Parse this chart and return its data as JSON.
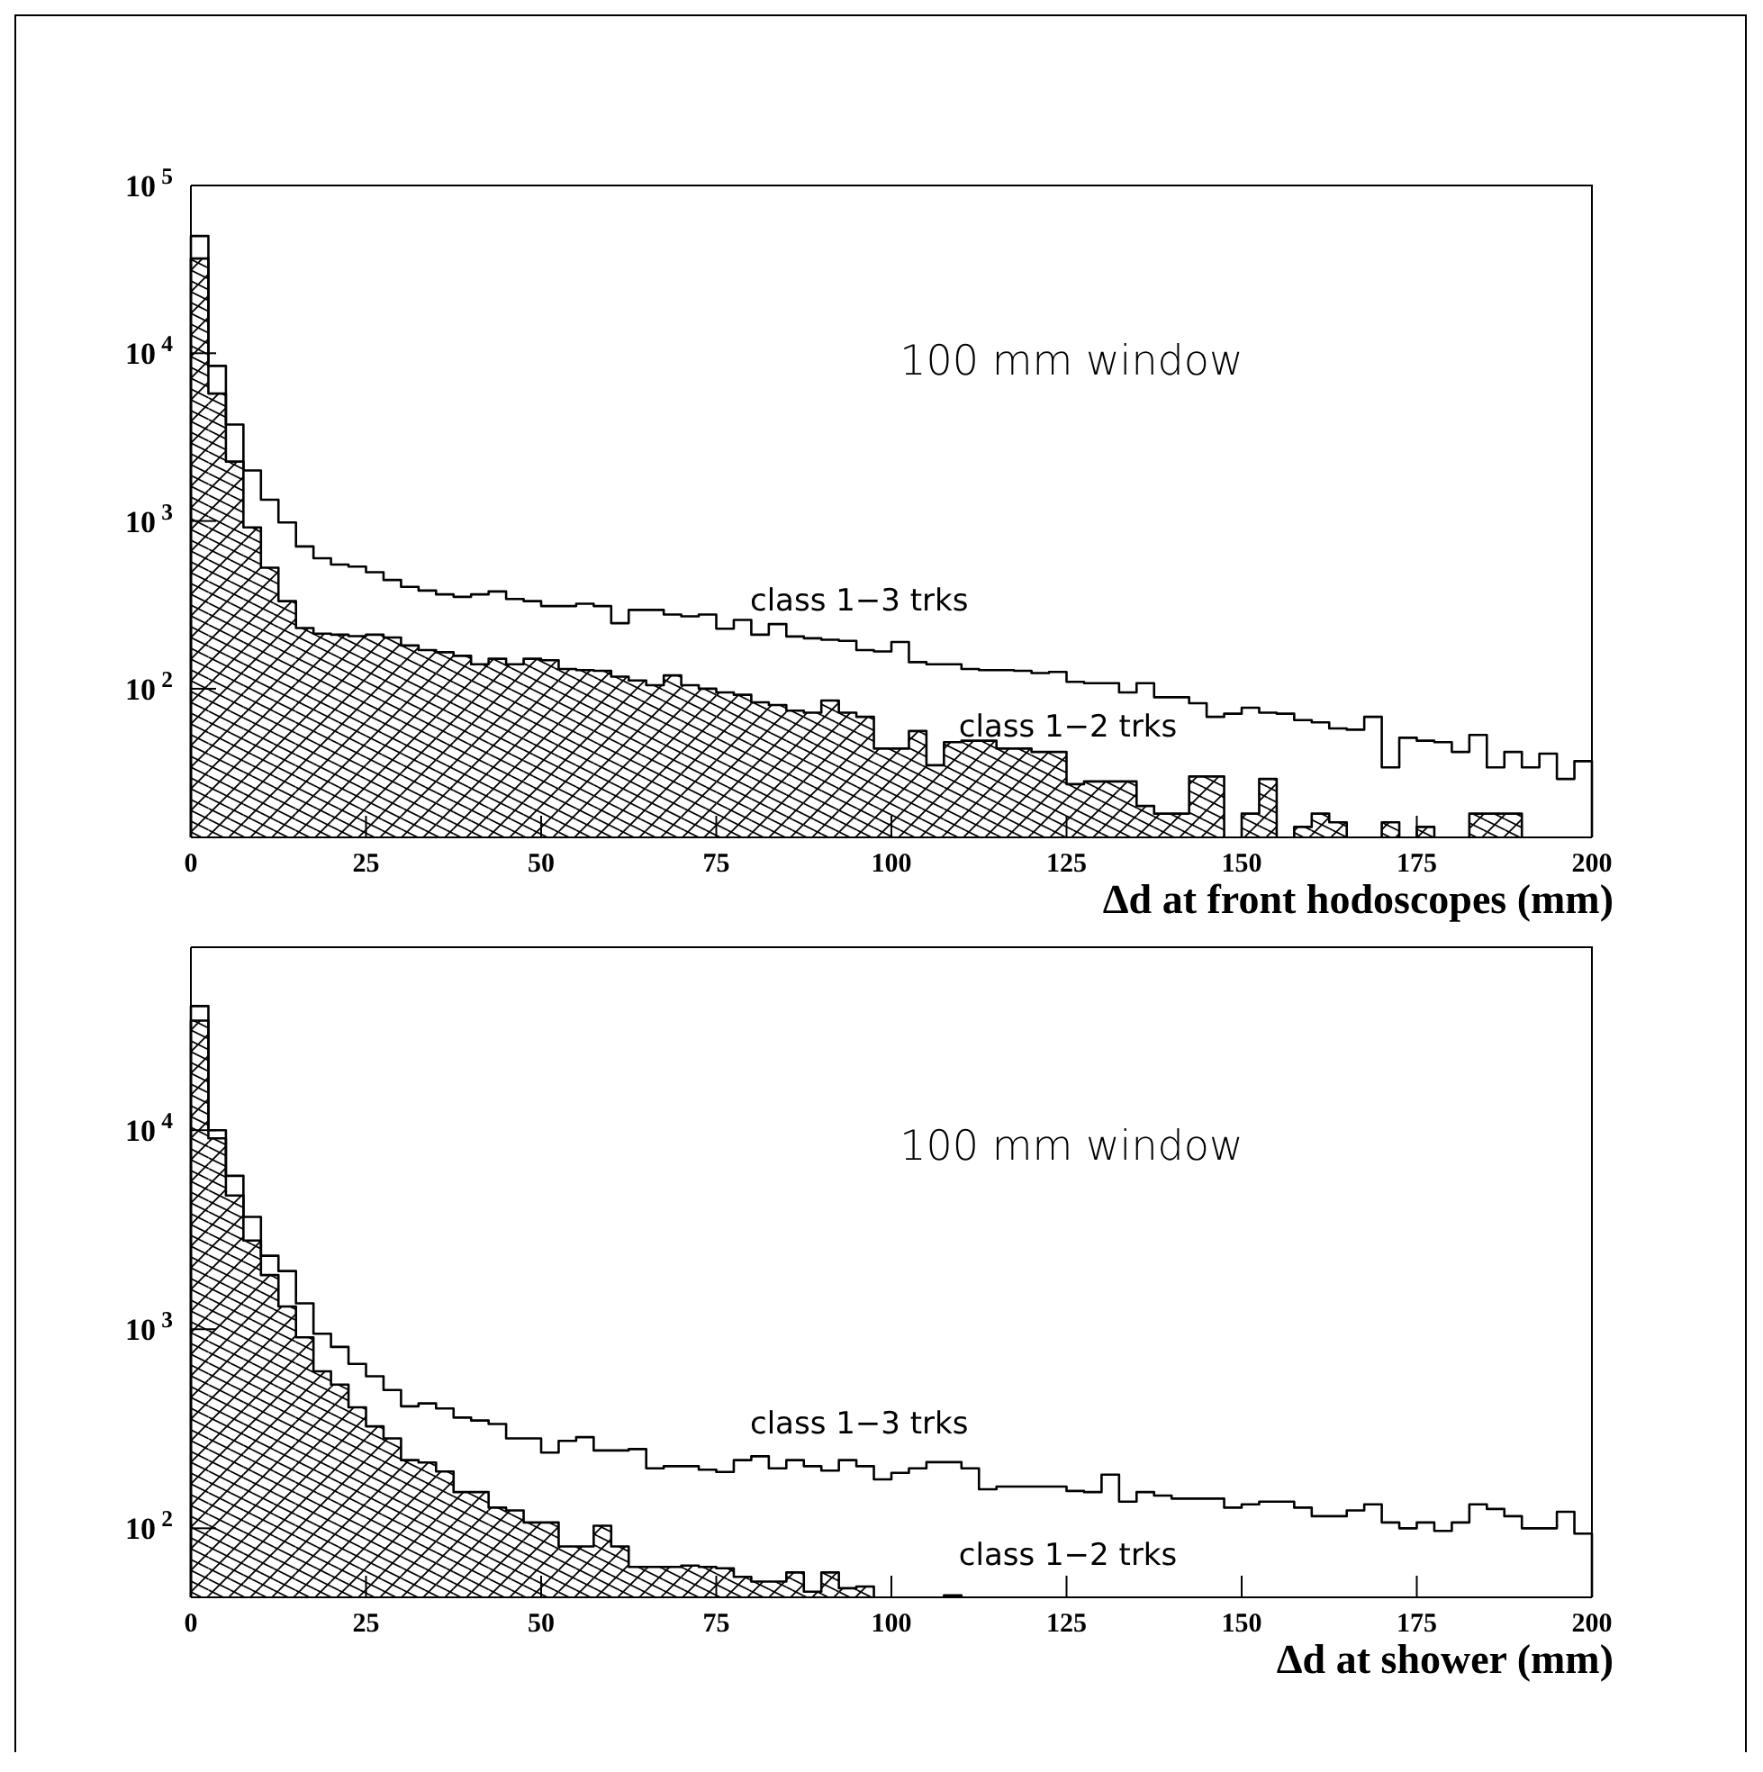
{
  "chart_data": [
    {
      "type": "histogram",
      "xlabel": "Δd at front hodoscopes (mm)",
      "log": true,
      "annotations": [
        "100 mm window",
        "class 1−3 trks",
        "class 1−2 trks"
      ],
      "bins": [
        0,
        2.5,
        5,
        7.5,
        10,
        12.5,
        15,
        17.5,
        20,
        22.5,
        25,
        27.5,
        30,
        32.5,
        35,
        37.5,
        40,
        42.5,
        45,
        47.5,
        50,
        52.5,
        55,
        57.5,
        60,
        62.5,
        65,
        67.5,
        70,
        72.5,
        75,
        77.5,
        80,
        82.5,
        85,
        87.5,
        90,
        92.5,
        95,
        97.5,
        100,
        102.5,
        105,
        107.5,
        110,
        112.5,
        115,
        117.5,
        120,
        122.5,
        125,
        127.5,
        130,
        132.5,
        135,
        137.5,
        140,
        142.5,
        145,
        147.5,
        150,
        152.5,
        155,
        157.5,
        160,
        162.5,
        165,
        167.5,
        170,
        172.5,
        175,
        177.5,
        180,
        182.5,
        185,
        187.5,
        190,
        192.5,
        195,
        197.5,
        200
      ],
      "xlim": [
        0,
        200
      ],
      "xticks": [
        0,
        25,
        50,
        75,
        100,
        125,
        150,
        175,
        200
      ],
      "ylim": [
        13,
        100000
      ],
      "yticks": [
        {
          "value": 100,
          "label": "10$^{2}$"
        },
        {
          "value": 1000,
          "label": "10$^{3}$"
        },
        {
          "value": 10000,
          "label": "10$^{4}$"
        },
        {
          "value": 100000,
          "label": "10$^{5}$"
        }
      ],
      "series": [
        {
          "color": "#000000",
          "values": [
            50000,
            8400,
            3760,
            2000,
            1340,
            980,
            705,
            600,
            550,
            535,
            495,
            445,
            405,
            385,
            365,
            353,
            365,
            380,
            343,
            333,
            311,
            311,
            321,
            311,
            246,
            295,
            295,
            277,
            270,
            277,
            228,
            257,
            210,
            243,
            205,
            200,
            196,
            193,
            170,
            167,
            190,
            144,
            140,
            140,
            131,
            129,
            129,
            128,
            124,
            126,
            110,
            108,
            108,
            95,
            108,
            89,
            89,
            82,
            68,
            71,
            77,
            72,
            71,
            65,
            63,
            58,
            57,
            68,
            34,
            51,
            49,
            48,
            42,
            53,
            34,
            42,
            34,
            41,
            29,
            37
          ]
        },
        {
          "color": "#000000",
          "values": [
            36700,
            5750,
            2260,
            915,
            527,
            333,
            230,
            213,
            210,
            206,
            210,
            202,
            181,
            170,
            165,
            157,
            140,
            151,
            140,
            151,
            148,
            131,
            129,
            128,
            118,
            112,
            105,
            120,
            105,
            100,
            95,
            92,
            83,
            80,
            74,
            72,
            85,
            72,
            68,
            44,
            44,
            56,
            35,
            48,
            49,
            49,
            44,
            44,
            42,
            42,
            27,
            28,
            28,
            28,
            20,
            18,
            18,
            30,
            30,
            null,
            18,
            29,
            null,
            15,
            18,
            16,
            null,
            null,
            16,
            null,
            15,
            null,
            null,
            18,
            18,
            18,
            null,
            null,
            null,
            null
          ]
        }
      ]
    },
    {
      "type": "histogram",
      "xlabel": "Δd at shower (mm)",
      "log": true,
      "annotations": [
        "100 mm window",
        "class 1−3 trks",
        "class 1−2 trks"
      ],
      "bins": [
        0,
        2.5,
        5,
        7.5,
        10,
        12.5,
        15,
        17.5,
        20,
        22.5,
        25,
        27.5,
        30,
        32.5,
        35,
        37.5,
        40,
        42.5,
        45,
        47.5,
        50,
        52.5,
        55,
        57.5,
        60,
        62.5,
        65,
        67.5,
        70,
        72.5,
        75,
        77.5,
        80,
        82.5,
        85,
        87.5,
        90,
        92.5,
        95,
        97.5,
        100,
        102.5,
        105,
        107.5,
        110,
        112.5,
        115,
        117.5,
        120,
        122.5,
        125,
        127.5,
        130,
        132.5,
        135,
        137.5,
        140,
        142.5,
        145,
        147.5,
        150,
        152.5,
        155,
        157.5,
        160,
        162.5,
        165,
        167.5,
        170,
        172.5,
        175,
        177.5,
        180,
        182.5,
        185,
        187.5,
        190,
        192.5,
        195,
        197.5,
        200
      ],
      "xlim": [
        0,
        200
      ],
      "xticks": [
        0,
        25,
        50,
        75,
        100,
        125,
        150,
        175,
        200
      ],
      "ylim": [
        45,
        83000
      ],
      "yticks": [
        {
          "value": 100,
          "label": "10$^{2}$"
        },
        {
          "value": 1000,
          "label": "10$^{3}$"
        },
        {
          "value": 10000,
          "label": "10$^{4}$"
        }
      ],
      "series": [
        {
          "color": "#000000",
          "values": [
            42000,
            10000,
            5900,
            3670,
            2340,
            1960,
            1350,
            950,
            815,
            670,
            580,
            495,
            410,
            424,
            400,
            360,
            348,
            334,
            283,
            283,
            240,
            275,
            287,
            246,
            246,
            250,
            200,
            205,
            205,
            197,
            192,
            220,
            230,
            200,
            220,
            205,
            195,
            220,
            205,
            176,
            190,
            200,
            215,
            215,
            200,
            157,
            162,
            162,
            162,
            162,
            154,
            152,
            186,
            136,
            152,
            146,
            141,
            141,
            141,
            127,
            132,
            136,
            136,
            127,
            115,
            115,
            123,
            132,
            107,
            100,
            107,
            97,
            107,
            132,
            125,
            115,
            100,
            100,
            121,
            94
          ]
        },
        {
          "color": "#000000",
          "values": [
            35500,
            9100,
            4700,
            2790,
            1870,
            1300,
            910,
            615,
            527,
            405,
            325,
            283,
            220,
            214,
            193,
            152,
            152,
            127,
            123,
            107,
            107,
            81,
            81,
            103,
            81,
            64,
            64,
            64,
            65,
            64,
            63,
            57,
            54,
            54,
            60,
            48,
            60,
            50,
            51,
            null,
            null,
            null,
            null,
            46,
            null,
            null,
            null,
            null,
            null,
            null,
            null,
            null,
            null,
            null,
            null,
            null,
            null,
            null,
            null,
            null,
            null,
            null,
            null,
            null,
            null,
            null,
            null,
            null,
            null,
            null,
            null,
            null,
            null,
            null,
            null,
            null,
            null,
            null,
            null,
            null
          ]
        }
      ]
    }
  ]
}
